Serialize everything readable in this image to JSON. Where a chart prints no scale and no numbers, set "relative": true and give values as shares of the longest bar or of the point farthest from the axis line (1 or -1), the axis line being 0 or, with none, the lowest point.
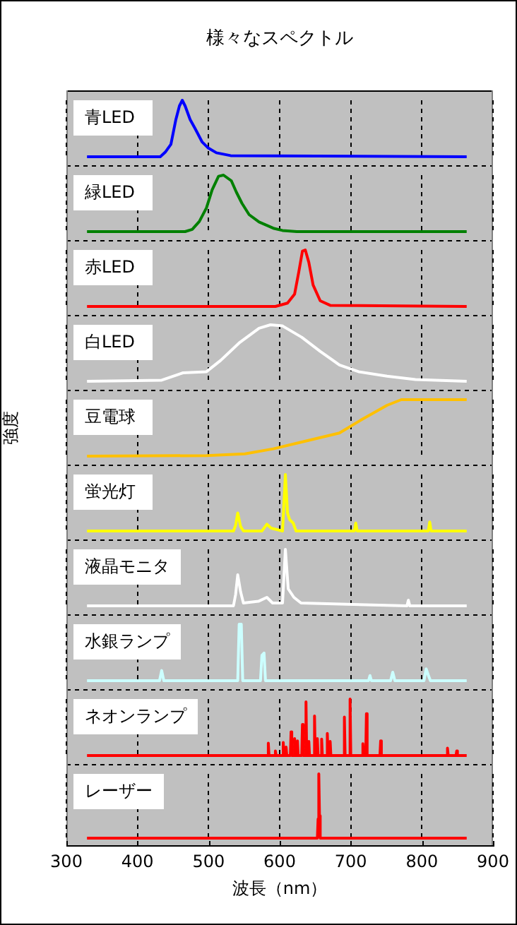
{
  "chart_data": [
    {
      "type": "line",
      "title": "様々なスペクトル",
      "relative": true,
      "xlim": [
        300,
        900
      ],
      "xticks": [
        300,
        400,
        500,
        600,
        700,
        800,
        900
      ],
      "grid": "x",
      "legend": "top left",
      "tick_labels": false,
      "series": [
        {
          "name": "青LED",
          "color": "#0000ff",
          "x": [
            329,
            432,
            439,
            447,
            454,
            459,
            463,
            467,
            474,
            481,
            491,
            499,
            511,
            531,
            863
          ],
          "values": [
            0,
            0,
            0.08,
            0.22,
            0.66,
            0.9,
            1,
            0.9,
            0.66,
            0.5,
            0.26,
            0.16,
            0.07,
            0.02,
            0
          ]
        }
      ]
    },
    {
      "type": "line",
      "relative": true,
      "xlim": [
        300,
        900
      ],
      "xticks": [
        300,
        400,
        500,
        600,
        700,
        800,
        900
      ],
      "grid": "x",
      "legend": "top left",
      "tick_labels": false,
      "series": [
        {
          "name": "緑LED",
          "color": "#008000",
          "x": [
            329,
            467,
            477,
            487,
            497,
            505,
            514,
            521,
            532,
            539,
            547,
            557,
            571,
            591,
            604,
            624,
            863
          ],
          "values": [
            0,
            0,
            0.04,
            0.18,
            0.42,
            0.74,
            0.98,
            1,
            0.9,
            0.7,
            0.5,
            0.3,
            0.17,
            0.06,
            0.02,
            0,
            0
          ]
        }
      ]
    },
    {
      "type": "line",
      "relative": true,
      "xlim": [
        300,
        900
      ],
      "xticks": [
        300,
        400,
        500,
        600,
        700,
        800,
        900
      ],
      "grid": "x",
      "legend": "top left",
      "tick_labels": false,
      "series": [
        {
          "name": "赤LED",
          "color": "#ff0000",
          "x": [
            329,
            594,
            611,
            621,
            627,
            632,
            636,
            641,
            647,
            657,
            671,
            863
          ],
          "values": [
            0,
            0,
            0.06,
            0.22,
            0.62,
            0.98,
            1,
            0.78,
            0.38,
            0.1,
            0.02,
            0
          ]
        }
      ]
    },
    {
      "type": "line",
      "relative": true,
      "xlim": [
        300,
        900
      ],
      "xticks": [
        300,
        400,
        500,
        600,
        700,
        800,
        900
      ],
      "grid": "x",
      "legend": "top left",
      "tick_labels": false,
      "series": [
        {
          "name": "白LED",
          "color": "#ffffff",
          "x": [
            329,
            434,
            464,
            497,
            517,
            544,
            571,
            587,
            604,
            631,
            657,
            684,
            711,
            751,
            791,
            863
          ],
          "values": [
            0,
            0.02,
            0.15,
            0.17,
            0.37,
            0.69,
            0.94,
            1,
            0.98,
            0.78,
            0.53,
            0.29,
            0.17,
            0.09,
            0.03,
            0
          ]
        }
      ]
    },
    {
      "type": "line",
      "ylabel": "強度",
      "relative": true,
      "xlim": [
        300,
        900
      ],
      "xticks": [
        300,
        400,
        500,
        600,
        700,
        800,
        900
      ],
      "grid": "x",
      "legend": "top left",
      "tick_labels": false,
      "series": [
        {
          "name": "豆電球",
          "color": "#ffc000",
          "x": [
            329,
            497,
            551,
            591,
            631,
            684,
            717,
            751,
            771,
            863
          ],
          "values": [
            0,
            0.01,
            0.04,
            0.13,
            0.25,
            0.41,
            0.66,
            0.9,
            1,
            1
          ]
        }
      ]
    },
    {
      "type": "line",
      "relative": true,
      "xlim": [
        300,
        900
      ],
      "xticks": [
        300,
        400,
        500,
        600,
        700,
        800,
        900
      ],
      "grid": "x",
      "legend": "top left",
      "tick_labels": false,
      "series": [
        {
          "name": "蛍光灯",
          "color": "#ffff00",
          "x": [
            329,
            535,
            538,
            541,
            545,
            549,
            575,
            582,
            588,
            604,
            608,
            611,
            614,
            619,
            623,
            705,
            707,
            709,
            809,
            811,
            813,
            863
          ],
          "values": [
            0,
            0,
            0.1,
            0.32,
            0.08,
            0,
            0,
            0.12,
            0.05,
            0,
            1,
            0.32,
            0.2,
            0.14,
            0,
            0,
            0.14,
            0,
            0,
            0.16,
            0,
            0
          ]
        }
      ]
    },
    {
      "type": "line",
      "relative": true,
      "xlim": [
        300,
        900
      ],
      "xticks": [
        300,
        400,
        500,
        600,
        700,
        800,
        900
      ],
      "grid": "x",
      "legend": "top left",
      "tick_labels": false,
      "series": [
        {
          "name": "液晶モニタ",
          "color": "#ffffff",
          "x": [
            329,
            535,
            538,
            541,
            545,
            549,
            570,
            582,
            590,
            604,
            608,
            612,
            620,
            630,
            779,
            781,
            783,
            863
          ],
          "values": [
            0,
            0,
            0.2,
            0.55,
            0.25,
            0.05,
            0.08,
            0.15,
            0.05,
            0.05,
            1,
            0.3,
            0.15,
            0.05,
            0,
            0.1,
            0,
            0
          ]
        }
      ]
    },
    {
      "type": "line",
      "relative": true,
      "xlim": [
        300,
        900
      ],
      "xticks": [
        300,
        400,
        500,
        600,
        700,
        800,
        900
      ],
      "grid": "x",
      "legend": "top left",
      "tick_labels": false,
      "series": [
        {
          "name": "水銀ランプ",
          "color": "#ccffff",
          "x": [
            329,
            431,
            434,
            437,
            541,
            543,
            546,
            548,
            573,
            575,
            578,
            580,
            725,
            727,
            729,
            756,
            759,
            762,
            803,
            806,
            809,
            812,
            863
          ],
          "values": [
            0,
            0,
            0.18,
            0,
            0,
            1,
            1,
            0,
            0,
            0.45,
            0.49,
            0,
            0,
            0.09,
            0,
            0,
            0.15,
            0,
            0,
            0.21,
            0.1,
            0,
            0
          ]
        }
      ]
    },
    {
      "type": "line",
      "relative": true,
      "xlim": [
        300,
        900
      ],
      "xticks": [
        300,
        400,
        500,
        600,
        700,
        800,
        900
      ],
      "grid": "x",
      "legend": "top left",
      "tick_labels": false,
      "series": [
        {
          "name": "ネオンランプ",
          "color": "#ff0000",
          "x": [
            329,
            583,
            584,
            585,
            593,
            594,
            595,
            604,
            605,
            606,
            608,
            609,
            610,
            615,
            616,
            617,
            620,
            621,
            622,
            624,
            625,
            626,
            631,
            632,
            633,
            636,
            637,
            638,
            640,
            641,
            642,
            648,
            649,
            650,
            652,
            653,
            654,
            658,
            659,
            660,
            666,
            667,
            668,
            670,
            671,
            672,
            690,
            691,
            692,
            698,
            699,
            700,
            716,
            717,
            718,
            721,
            722,
            723,
            741,
            742,
            743,
            835,
            836,
            837,
            848,
            849,
            850,
            863
          ],
          "values": [
            0,
            0,
            0.22,
            0,
            0,
            0.08,
            0,
            0,
            0.23,
            0,
            0,
            0.15,
            0,
            0,
            0.42,
            0,
            0,
            0.3,
            0,
            0,
            0.26,
            0,
            0,
            0.55,
            0,
            0,
            0.95,
            0,
            0,
            0.25,
            0,
            0,
            0.7,
            0,
            0,
            0.3,
            0,
            0,
            0.29,
            0,
            0,
            0.39,
            0,
            0,
            0.25,
            0,
            0,
            0.68,
            0,
            0,
            1,
            0,
            0,
            0.21,
            0,
            0,
            0.74,
            0,
            0,
            0.26,
            0,
            0,
            0.13,
            0,
            0,
            0.08,
            0,
            0
          ]
        }
      ]
    },
    {
      "type": "line",
      "xlabel": "波長（nm）",
      "relative": true,
      "xlim": [
        300,
        900
      ],
      "xticks": [
        300,
        400,
        500,
        600,
        700,
        800,
        900
      ],
      "grid": "x",
      "legend": "top left",
      "tick_labels": "x",
      "series": [
        {
          "name": "レーザー",
          "color": "#ff0000",
          "x": [
            329,
            653,
            654,
            655,
            656,
            657,
            863
          ],
          "values": [
            0,
            0,
            0.3,
            1,
            0.35,
            0,
            0
          ]
        }
      ]
    }
  ]
}
